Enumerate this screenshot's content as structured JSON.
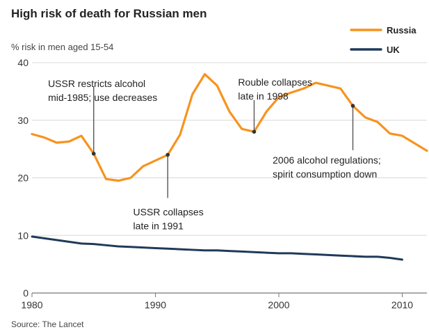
{
  "chart_data": {
    "type": "line",
    "title": "High risk of death for Russian men",
    "subtitle": "% risk in men aged 15-54",
    "source": "Source: The Lancet",
    "xlabel": "",
    "ylabel": "",
    "xlim": [
      1980,
      2012
    ],
    "ylim": [
      0,
      40
    ],
    "x_ticks": [
      1980,
      1990,
      2000,
      2010
    ],
    "y_ticks": [
      0,
      10,
      20,
      30,
      40
    ],
    "grid": true,
    "legend": "top-right",
    "colors": {
      "Russia": "#f7931e",
      "UK": "#1f3a5a",
      "grid": "#d9d9d9",
      "axis": "#777777",
      "annotation_line": "#555555"
    },
    "series": [
      {
        "name": "Russia",
        "x": [
          1980,
          1981,
          1982,
          1983,
          1984,
          1985,
          1986,
          1987,
          1988,
          1989,
          1990,
          1991,
          1992,
          1993,
          1994,
          1995,
          1996,
          1997,
          1998,
          1999,
          2000,
          2001,
          2002,
          2003,
          2004,
          2005,
          2006,
          2007,
          2008,
          2009,
          2010,
          2011,
          2012
        ],
        "values": [
          27.6,
          27.0,
          26.1,
          26.3,
          27.3,
          24.2,
          19.8,
          19.5,
          20.0,
          22.0,
          23.0,
          24.0,
          27.5,
          34.5,
          38.0,
          36.0,
          31.5,
          28.5,
          28.0,
          31.5,
          34.0,
          34.8,
          35.5,
          36.5,
          36.0,
          35.5,
          32.5,
          30.5,
          29.7,
          27.7,
          27.3,
          26.0,
          24.7
        ]
      },
      {
        "name": "UK",
        "x": [
          1980,
          1981,
          1982,
          1983,
          1984,
          1985,
          1986,
          1987,
          1988,
          1989,
          1990,
          1991,
          1992,
          1993,
          1994,
          1995,
          1996,
          1997,
          1998,
          1999,
          2000,
          2001,
          2002,
          2003,
          2004,
          2005,
          2006,
          2007,
          2008,
          2009,
          2010
        ],
        "values": [
          9.8,
          9.5,
          9.2,
          8.9,
          8.6,
          8.5,
          8.3,
          8.1,
          8.0,
          7.9,
          7.8,
          7.7,
          7.6,
          7.5,
          7.4,
          7.4,
          7.3,
          7.2,
          7.1,
          7.0,
          6.9,
          6.9,
          6.8,
          6.7,
          6.6,
          6.5,
          6.4,
          6.3,
          6.3,
          6.1,
          5.8
        ]
      }
    ],
    "annotations": [
      {
        "x": 1985,
        "y": 24.2,
        "text": [
          "USSR restricts alcohol",
          "mid-1985; use decreases"
        ],
        "text_y": 35.8,
        "text_x": 1981.3,
        "line_to": 35.8,
        "anchor": "start"
      },
      {
        "x": 1991,
        "y": 24.0,
        "text": [
          "USSR collapses",
          "late in 1991"
        ],
        "text_y": 13.5,
        "text_x": 1988.2,
        "line_to": 16.5,
        "anchor": "start"
      },
      {
        "x": 1998,
        "y": 28.0,
        "text": [
          "Rouble collapses",
          "late in 1998"
        ],
        "text_y": 36.0,
        "text_x": 1996.7,
        "line_to": 33.5,
        "anchor": "start"
      },
      {
        "x": 2006,
        "y": 32.5,
        "text": [
          "2006 alcohol regulations;",
          "spirit consumption down"
        ],
        "text_y": 22.5,
        "text_x": 1999.5,
        "line_to": 24.8,
        "anchor": "start"
      }
    ]
  }
}
